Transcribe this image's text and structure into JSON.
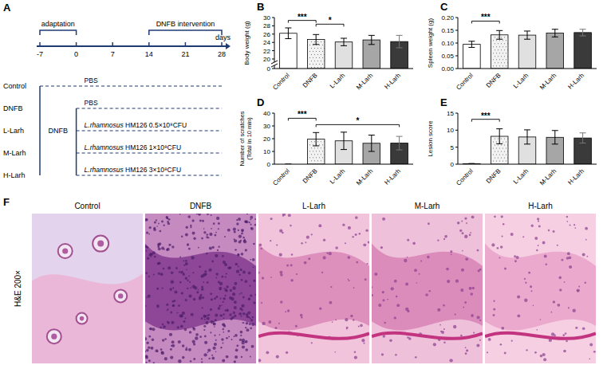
{
  "panel_labels": [
    "A",
    "B",
    "C",
    "D",
    "E",
    "F"
  ],
  "timeline": {
    "ticks": [
      -7,
      0,
      7,
      14,
      21,
      28
    ],
    "axis_label": "days",
    "phases": [
      {
        "label": "adaptation",
        "from": -7,
        "to": 0
      },
      {
        "label": "DNFB intervention",
        "from": 14,
        "to": 28
      }
    ],
    "induction": {
      "label": "DNFB",
      "from": -7,
      "to": 0
    },
    "groups": [
      {
        "name": "Control",
        "treatment": "PBS",
        "start": -7
      },
      {
        "name": "DNFB",
        "treatment": "PBS",
        "start": 0
      },
      {
        "name": "L-Larh",
        "treatment": "L.rhamnosus HM126 0.5×10⁸CFU",
        "start": 0
      },
      {
        "name": "M-Larh",
        "treatment": "L.rhamnosus HM126 1×10⁸CFU",
        "start": 0
      },
      {
        "name": "H-Larh",
        "treatment": "L.rhamnosus HM126 3×10⁸CFU",
        "start": 0
      }
    ]
  },
  "chart_data": [
    {
      "type": "bar",
      "y_label": "Body weight (g)",
      "categories": [
        "Control",
        "DNFB",
        "L-Larh",
        "M-Larh",
        "H-Larh"
      ],
      "values": [
        26.2,
        24.7,
        24.1,
        24.6,
        24.2
      ],
      "errors": [
        1.3,
        1.2,
        0.9,
        1.1,
        1.5
      ],
      "colors": [
        "#ffffff",
        "#f2f2f2",
        "#e0e0e0",
        "#a6a6a6",
        "#3a3a3a"
      ],
      "ylim": [
        0,
        30
      ],
      "yticks": [
        0,
        20,
        22,
        24,
        26,
        28,
        30
      ],
      "axis_break": [
        2,
        20
      ],
      "grid": false,
      "annotations": [
        {
          "from": 0,
          "to": 1,
          "y": 29.3,
          "label": "***"
        },
        {
          "from": 1,
          "to": 2,
          "y": 28.4,
          "label": "*"
        }
      ]
    },
    {
      "type": "bar",
      "y_label": "Spleen weight (g)",
      "categories": [
        "Control",
        "DNFB",
        "L-Larh",
        "M-Larh",
        "H-Larh"
      ],
      "values": [
        0.095,
        0.132,
        0.131,
        0.139,
        0.141
      ],
      "errors": [
        0.012,
        0.017,
        0.016,
        0.015,
        0.013
      ],
      "colors": [
        "#ffffff",
        "#f2f2f2",
        "#e0e0e0",
        "#a6a6a6",
        "#3a3a3a"
      ],
      "ylim": [
        0,
        0.2
      ],
      "yticks": [
        {
          "value": 0,
          "label": "0.00"
        },
        {
          "value": 0.05,
          "label": "0.05"
        },
        {
          "value": 0.1,
          "label": "0.10"
        },
        {
          "value": 0.15,
          "label": "0.15"
        },
        {
          "value": 0.2,
          "label": "0.20"
        }
      ],
      "grid": false,
      "annotations": [
        {
          "from": 0,
          "to": 1,
          "y": 0.186,
          "label": "***"
        }
      ]
    },
    {
      "type": "bar",
      "y_label": "Number of scratches (Total in 10 min)",
      "categories": [
        "Control",
        "DNFB",
        "L-Larh",
        "M-Larh",
        "H-Larh"
      ],
      "values": [
        0,
        19.6,
        18.3,
        16.4,
        16.5
      ],
      "errors": [
        0,
        5.2,
        6.8,
        6.4,
        5.3
      ],
      "colors": [
        "#ffffff",
        "#f2f2f2",
        "#e0e0e0",
        "#a6a6a6",
        "#3a3a3a"
      ],
      "ylim": [
        0,
        40
      ],
      "yticks": [
        0,
        10,
        20,
        30,
        40
      ],
      "grid": false,
      "annotations": [
        {
          "from": 0,
          "to": 1,
          "y": 36,
          "label": "***"
        },
        {
          "from": 1,
          "to": 4,
          "y": 31,
          "label": "*"
        }
      ]
    },
    {
      "type": "bar",
      "y_label": "Lesion score",
      "categories": [
        "Control",
        "DNFB",
        "L-Larh",
        "M-Larh",
        "H-Larh"
      ],
      "values": [
        0.1,
        8.2,
        8.0,
        7.9,
        7.7
      ],
      "errors": [
        0.1,
        2.2,
        2.1,
        2.0,
        1.5
      ],
      "colors": [
        "#ffffff",
        "#f2f2f2",
        "#e0e0e0",
        "#a6a6a6",
        "#3a3a3a"
      ],
      "ylim": [
        0,
        15
      ],
      "yticks": [
        0,
        5,
        10,
        15
      ],
      "grid": false,
      "annotations": [
        {
          "from": 0,
          "to": 1,
          "y": 13.2,
          "label": "***"
        }
      ]
    }
  ],
  "histology": {
    "stain_label": "H&E 200×",
    "groups": [
      "Control",
      "DNFB",
      "L-Larh",
      "M-Larh",
      "H-Larh"
    ]
  }
}
